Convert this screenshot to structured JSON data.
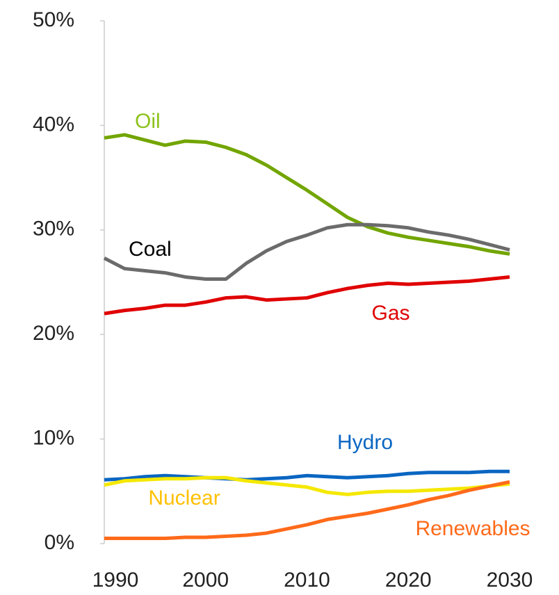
{
  "chart_data": {
    "type": "line",
    "x": [
      1990,
      1992,
      1994,
      1996,
      1998,
      2000,
      2002,
      2004,
      2006,
      2008,
      2010,
      2012,
      2014,
      2016,
      2018,
      2020,
      2022,
      2024,
      2026,
      2028,
      2030
    ],
    "xlim": [
      1990,
      2030
    ],
    "xticks": [
      1990,
      2000,
      2010,
      2020,
      2030
    ],
    "ylim": [
      0,
      50
    ],
    "yticks": [
      {
        "value": 0,
        "label": "0%"
      },
      {
        "value": 10,
        "label": "10%"
      },
      {
        "value": 20,
        "label": "20%"
      },
      {
        "value": 30,
        "label": "30%"
      },
      {
        "value": 40,
        "label": "40%"
      },
      {
        "value": 50,
        "label": "50%"
      }
    ],
    "series": [
      {
        "name": "Oil",
        "color": "#72a500",
        "label_color": "#8cc21a",
        "values": [
          38.8,
          39.1,
          38.6,
          38.1,
          38.5,
          38.4,
          37.9,
          37.2,
          36.2,
          35.0,
          33.8,
          32.5,
          31.2,
          30.3,
          29.7,
          29.3,
          29.0,
          28.7,
          28.4,
          28.0,
          27.7
        ]
      },
      {
        "name": "Coal",
        "color": "#6b6b6b",
        "label_color": "#000000",
        "values": [
          27.3,
          26.3,
          26.1,
          25.9,
          25.5,
          25.3,
          25.3,
          26.8,
          28.0,
          28.9,
          29.5,
          30.2,
          30.5,
          30.5,
          30.4,
          30.2,
          29.8,
          29.5,
          29.1,
          28.6,
          28.1
        ]
      },
      {
        "name": "Gas",
        "color": "#e00000",
        "label_color": "#e00000",
        "values": [
          22.0,
          22.3,
          22.5,
          22.8,
          22.8,
          23.1,
          23.5,
          23.6,
          23.3,
          23.4,
          23.5,
          24.0,
          24.4,
          24.7,
          24.9,
          24.8,
          24.9,
          25.0,
          25.1,
          25.3,
          25.5
        ]
      },
      {
        "name": "Hydro",
        "color": "#0a66c2",
        "label_color": "#0a66c2",
        "values": [
          6.1,
          6.2,
          6.4,
          6.5,
          6.4,
          6.3,
          6.2,
          6.1,
          6.2,
          6.3,
          6.5,
          6.4,
          6.3,
          6.4,
          6.5,
          6.7,
          6.8,
          6.8,
          6.8,
          6.9,
          6.9
        ]
      },
      {
        "name": "Nuclear",
        "color": "#f5e800",
        "label_color": "#ffc000",
        "values": [
          5.6,
          6.0,
          6.1,
          6.2,
          6.2,
          6.3,
          6.3,
          6.0,
          5.8,
          5.6,
          5.4,
          4.9,
          4.7,
          4.9,
          5.0,
          5.0,
          5.1,
          5.2,
          5.3,
          5.5,
          5.7
        ]
      },
      {
        "name": "Renewables",
        "color": "#ff6a1a",
        "label_color": "#ff6a1a",
        "values": [
          0.5,
          0.5,
          0.5,
          0.5,
          0.6,
          0.6,
          0.7,
          0.8,
          1.0,
          1.4,
          1.8,
          2.3,
          2.6,
          2.9,
          3.3,
          3.7,
          4.2,
          4.6,
          5.1,
          5.5,
          5.9
        ]
      }
    ]
  }
}
